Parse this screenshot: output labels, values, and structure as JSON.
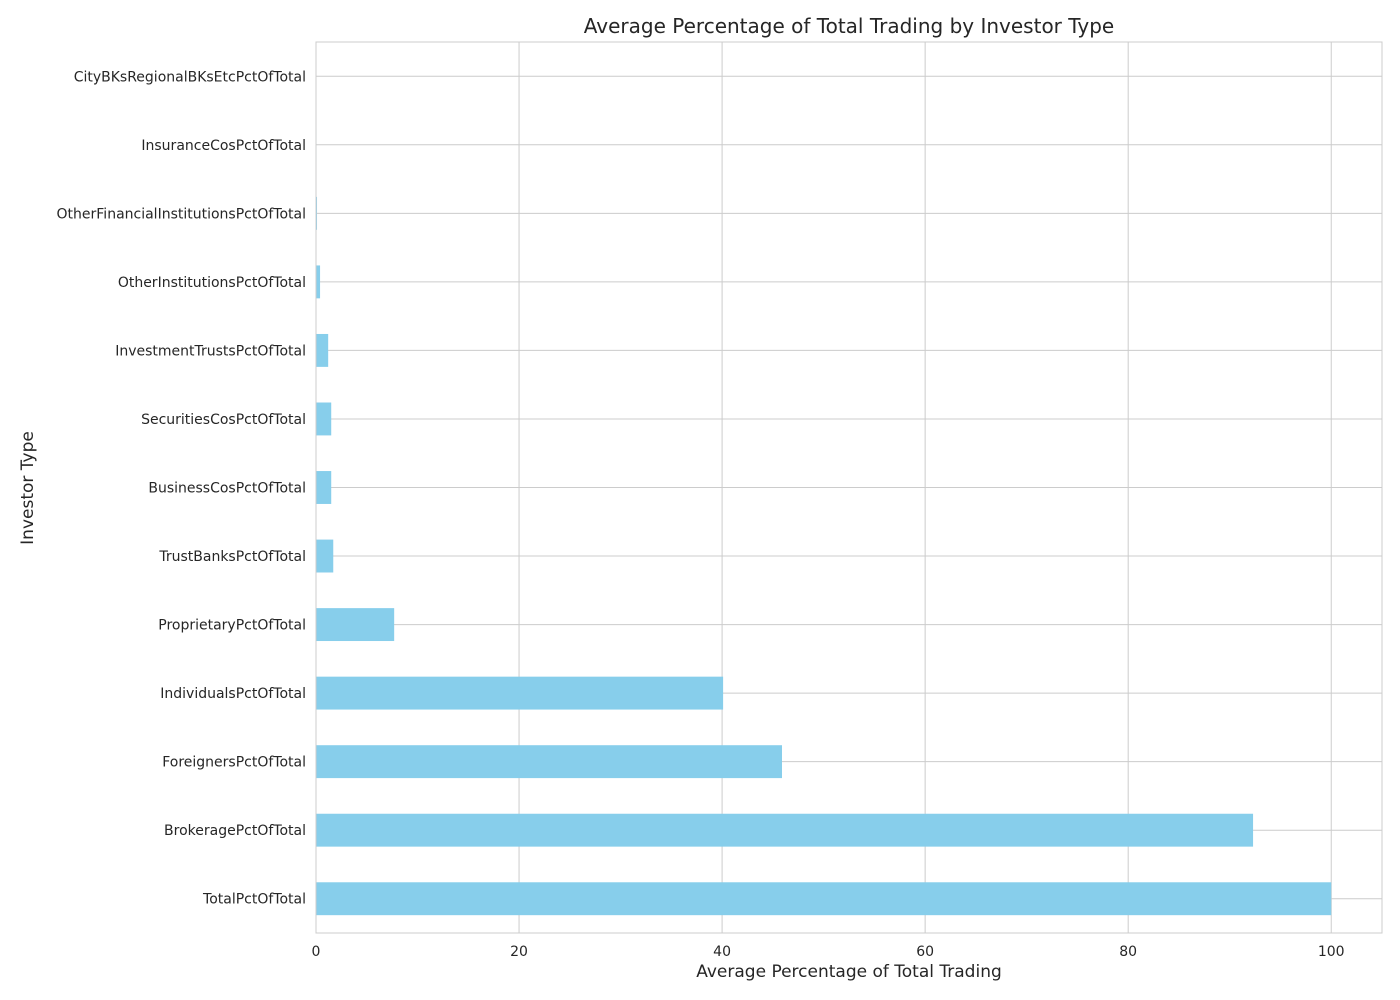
{
  "chart_data": {
    "type": "bar",
    "orientation": "horizontal",
    "title": "Average Percentage of Total Trading by Investor Type",
    "xlabel": "Average Percentage of Total Trading",
    "ylabel": "Investor Type",
    "xlim": [
      0,
      105
    ],
    "xticks": [
      0,
      20,
      40,
      60,
      80,
      100
    ],
    "grid": true,
    "bar_color": "#87CEEB",
    "categories": [
      "TotalPctOfTotal",
      "BrokeragePctOfTotal",
      "ForeignersPctOfTotal",
      "IndividualsPctOfTotal",
      "ProprietaryPctOfTotal",
      "TrustBanksPctOfTotal",
      "BusinessCosPctOfTotal",
      "SecuritiesCosPctOfTotal",
      "InvestmentTrustsPctOfTotal",
      "OtherInstitutionsPctOfTotal",
      "OtherFinancialInstitutionsPctOfTotal",
      "InsuranceCosPctOfTotal",
      "CityBKsRegionalBKsEtcPctOfTotal"
    ],
    "values": [
      100.0,
      92.3,
      45.9,
      40.1,
      7.7,
      1.7,
      1.5,
      1.5,
      1.2,
      0.4,
      0.1,
      0.05,
      0.03
    ]
  }
}
